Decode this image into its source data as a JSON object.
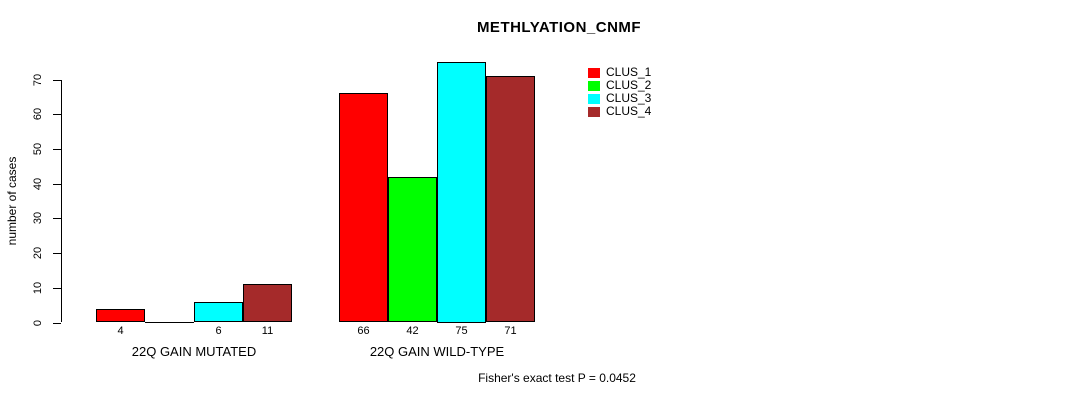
{
  "chart_data": {
    "type": "bar",
    "title": "METHLYATION_CNMF",
    "ylabel": "number of cases",
    "xlabel": "",
    "yticks": [
      0,
      10,
      20,
      30,
      40,
      50,
      60,
      70
    ],
    "ylim": [
      0,
      75
    ],
    "grid": false,
    "legend_position": "top-right",
    "series": [
      {
        "name": "CLUS_1",
        "color": "#FF0000",
        "values": [
          4,
          66
        ]
      },
      {
        "name": "CLUS_2",
        "color": "#00FF00",
        "values": [
          0,
          42
        ]
      },
      {
        "name": "CLUS_3",
        "color": "#00FFFF",
        "values": [
          6,
          75
        ]
      },
      {
        "name": "CLUS_4",
        "color": "#A52A2A",
        "values": [
          11,
          71
        ]
      }
    ],
    "groups": [
      {
        "label": "22Q GAIN MUTATED",
        "values": [
          4,
          0,
          6,
          11
        ],
        "bar_labels": [
          "4",
          "",
          "6",
          "11"
        ]
      },
      {
        "label": "22Q GAIN WILD-TYPE",
        "values": [
          66,
          42,
          75,
          71
        ],
        "bar_labels": [
          "66",
          "42",
          "75",
          "71"
        ]
      }
    ],
    "annotation": "Fisher's exact test P = 0.0452"
  },
  "legend": {
    "items": [
      {
        "label": "CLUS_1",
        "color": "#FF0000"
      },
      {
        "label": "CLUS_2",
        "color": "#00FF00"
      },
      {
        "label": "CLUS_3",
        "color": "#00FFFF"
      },
      {
        "label": "CLUS_4",
        "color": "#A52A2A"
      }
    ]
  }
}
